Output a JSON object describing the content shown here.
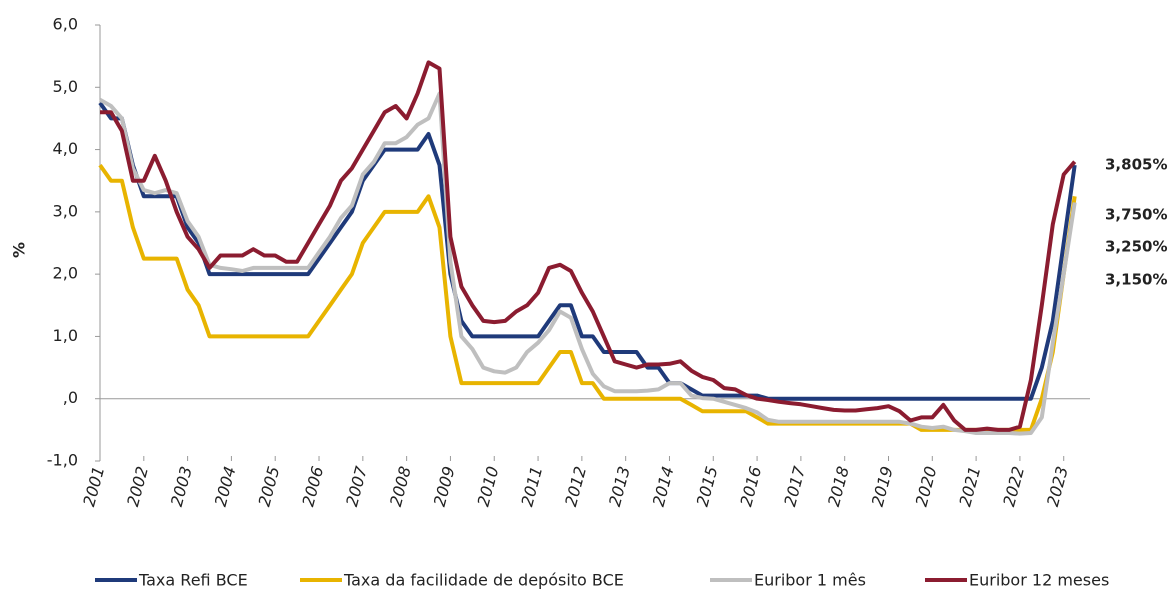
{
  "chart_data": {
    "type": "line",
    "y_label": "%",
    "x": [
      2001,
      2001.25,
      2001.5,
      2001.75,
      2002,
      2002.25,
      2002.5,
      2002.75,
      2003,
      2003.25,
      2003.5,
      2003.75,
      2004,
      2004.25,
      2004.5,
      2004.75,
      2005,
      2005.25,
      2005.5,
      2005.75,
      2006,
      2006.25,
      2006.5,
      2006.75,
      2007,
      2007.25,
      2007.5,
      2007.75,
      2008,
      2008.25,
      2008.5,
      2008.75,
      2009,
      2009.25,
      2009.5,
      2009.75,
      2010,
      2010.25,
      2010.5,
      2010.75,
      2011,
      2011.25,
      2011.5,
      2011.75,
      2012,
      2012.25,
      2012.5,
      2012.75,
      2013,
      2013.25,
      2013.5,
      2013.75,
      2014,
      2014.25,
      2014.5,
      2014.75,
      2015,
      2015.25,
      2015.5,
      2015.75,
      2016,
      2016.25,
      2016.5,
      2016.75,
      2017,
      2017.25,
      2017.5,
      2017.75,
      2018,
      2018.25,
      2018.5,
      2018.75,
      2019,
      2019.25,
      2019.5,
      2019.75,
      2020,
      2020.25,
      2020.5,
      2020.75,
      2021,
      2021.25,
      2021.5,
      2021.75,
      2022,
      2022.25,
      2022.5,
      2022.75,
      2023,
      2023.25
    ],
    "series": [
      {
        "name": "Taxa Refi BCE",
        "color": "#1f3a7a",
        "values": [
          4.75,
          4.5,
          4.5,
          3.75,
          3.25,
          3.25,
          3.25,
          3.25,
          2.75,
          2.5,
          2.0,
          2.0,
          2,
          2,
          2,
          2,
          2,
          2,
          2,
          2,
          2.25,
          2.5,
          2.75,
          3.0,
          3.5,
          3.75,
          4.0,
          4.0,
          4.0,
          4.0,
          4.25,
          3.75,
          2.0,
          1.25,
          1.0,
          1.0,
          1,
          1,
          1,
          1,
          1.0,
          1.25,
          1.5,
          1.5,
          1.0,
          1.0,
          0.75,
          0.75,
          0.75,
          0.75,
          0.5,
          0.5,
          0.25,
          0.25,
          0.15,
          0.05,
          0.05,
          0.05,
          0.05,
          0.05,
          0.05,
          0,
          0,
          0,
          0,
          0,
          0,
          0,
          0,
          0,
          0,
          0,
          0,
          0,
          0,
          0,
          0,
          0,
          0,
          0,
          0,
          0,
          0,
          0,
          0,
          0,
          0.5,
          1.25,
          2.5,
          3.75
        ]
      },
      {
        "name": "Taxa da facilidade de depósito BCE",
        "color": "#e8b400",
        "values": [
          3.75,
          3.5,
          3.5,
          2.75,
          2.25,
          2.25,
          2.25,
          2.25,
          1.75,
          1.5,
          1.0,
          1.0,
          1,
          1,
          1,
          1,
          1,
          1,
          1,
          1,
          1.25,
          1.5,
          1.75,
          2.0,
          2.5,
          2.75,
          3.0,
          3.0,
          3.0,
          3.0,
          3.25,
          2.75,
          1.0,
          0.25,
          0.25,
          0.25,
          0.25,
          0.25,
          0.25,
          0.25,
          0.25,
          0.5,
          0.75,
          0.75,
          0.25,
          0.25,
          0,
          0,
          0,
          0,
          0,
          0,
          0,
          0,
          -0.1,
          -0.2,
          -0.2,
          -0.2,
          -0.2,
          -0.2,
          -0.3,
          -0.4,
          -0.4,
          -0.4,
          -0.4,
          -0.4,
          -0.4,
          -0.4,
          -0.4,
          -0.4,
          -0.4,
          -0.4,
          -0.4,
          -0.4,
          -0.4,
          -0.5,
          -0.5,
          -0.5,
          -0.5,
          -0.5,
          -0.5,
          -0.5,
          -0.5,
          -0.5,
          -0.5,
          -0.5,
          0,
          0.75,
          2.0,
          3.25
        ]
      },
      {
        "name": "Euribor 1 mês",
        "color": "#bfbfbf",
        "values": [
          4.8,
          4.7,
          4.5,
          3.7,
          3.35,
          3.3,
          3.35,
          3.3,
          2.85,
          2.6,
          2.15,
          2.1,
          2.08,
          2.05,
          2.1,
          2.1,
          2.1,
          2.1,
          2.1,
          2.1,
          2.35,
          2.6,
          2.9,
          3.1,
          3.6,
          3.8,
          4.1,
          4.1,
          4.2,
          4.4,
          4.5,
          4.9,
          2.2,
          1.0,
          0.8,
          0.5,
          0.44,
          0.42,
          0.5,
          0.75,
          0.9,
          1.1,
          1.4,
          1.3,
          0.8,
          0.4,
          0.2,
          0.12,
          0.12,
          0.12,
          0.13,
          0.15,
          0.25,
          0.25,
          0.05,
          0.01,
          0.0,
          -0.05,
          -0.1,
          -0.15,
          -0.22,
          -0.34,
          -0.37,
          -0.37,
          -0.37,
          -0.37,
          -0.37,
          -0.37,
          -0.37,
          -0.37,
          -0.37,
          -0.37,
          -0.37,
          -0.37,
          -0.4,
          -0.45,
          -0.47,
          -0.45,
          -0.5,
          -0.52,
          -0.55,
          -0.55,
          -0.55,
          -0.55,
          -0.56,
          -0.55,
          -0.3,
          0.9,
          2.0,
          3.15
        ]
      },
      {
        "name": "Euribor 12 meses",
        "color": "#8b1c30",
        "values": [
          4.6,
          4.6,
          4.3,
          3.5,
          3.5,
          3.9,
          3.5,
          3.0,
          2.6,
          2.4,
          2.1,
          2.3,
          2.3,
          2.3,
          2.4,
          2.3,
          2.3,
          2.2,
          2.2,
          2.5,
          2.8,
          3.1,
          3.5,
          3.7,
          4.0,
          4.3,
          4.6,
          4.7,
          4.5,
          4.9,
          5.4,
          5.3,
          2.6,
          1.8,
          1.5,
          1.25,
          1.23,
          1.25,
          1.4,
          1.5,
          1.7,
          2.1,
          2.15,
          2.05,
          1.7,
          1.4,
          1.0,
          0.6,
          0.55,
          0.5,
          0.55,
          0.55,
          0.56,
          0.6,
          0.45,
          0.35,
          0.3,
          0.17,
          0.15,
          0.06,
          0.0,
          -0.02,
          -0.05,
          -0.07,
          -0.09,
          -0.12,
          -0.15,
          -0.18,
          -0.19,
          -0.19,
          -0.17,
          -0.15,
          -0.12,
          -0.2,
          -0.35,
          -0.3,
          -0.3,
          -0.1,
          -0.35,
          -0.5,
          -0.5,
          -0.48,
          -0.5,
          -0.5,
          -0.45,
          0.3,
          1.5,
          2.8,
          3.6,
          3.805
        ]
      }
    ],
    "end_labels": [
      {
        "text": "3,805%",
        "color": "#8b1c30"
      },
      {
        "text": "3,750%",
        "color": "#1f3a7a"
      },
      {
        "text": "3,250%",
        "color": "#e8b400"
      },
      {
        "text": "3,150%",
        "color": "#bfbfbf"
      }
    ],
    "xlim": [
      2001,
      2023.6
    ],
    "xticks": [
      2001,
      2002,
      2003,
      2004,
      2005,
      2006,
      2007,
      2008,
      2009,
      2010,
      2011,
      2012,
      2013,
      2014,
      2015,
      2016,
      2017,
      2018,
      2019,
      2020,
      2021,
      2022,
      2023
    ],
    "ylim": [
      -1,
      6
    ],
    "yticks": [
      {
        "value": 6,
        "label": "6,0"
      },
      {
        "value": 5,
        "label": "5,0"
      },
      {
        "value": 4,
        "label": "4,0"
      },
      {
        "value": 3,
        "label": "3,0"
      },
      {
        "value": 2,
        "label": "2,0"
      },
      {
        "value": 1,
        "label": "1,0"
      },
      {
        "value": 0,
        "label": ",0"
      },
      {
        "value": -1,
        "label": "-1,0"
      }
    ],
    "legend": "bottom"
  }
}
